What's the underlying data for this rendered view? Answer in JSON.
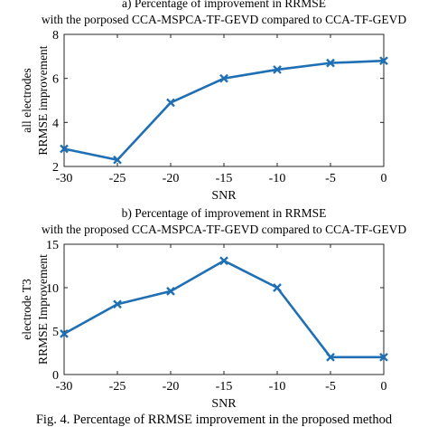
{
  "chart_data": [
    {
      "type": "line",
      "title_lines": [
        "a) Percentage of improvement in RRMSE",
        "with the porposed CCA-MSPCA-TF-GEVD compared to CCA-TF-GEVD"
      ],
      "xlabel": "SNR",
      "ylabel_lines": [
        "all electrodes",
        "RRMSE improvement"
      ],
      "x": [
        -30,
        -25,
        -20,
        -15,
        -10,
        -5,
        0
      ],
      "values": [
        2.8,
        2.3,
        4.9,
        6.0,
        6.4,
        6.7,
        6.8
      ],
      "xlim": [
        -30,
        0
      ],
      "ylim": [
        2,
        8
      ],
      "xticks": [
        -30,
        -25,
        -20,
        -15,
        -10,
        -5,
        0
      ],
      "yticks": [
        2,
        4,
        6,
        8
      ],
      "grid": false,
      "color": "#1f6fb4",
      "marker": "x"
    },
    {
      "type": "line",
      "title_lines": [
        "b) Percentage of improvement in RRMSE",
        "with the proposed CCA-MSPCA-TF-GEVD compared to CCA-TF-GEVD"
      ],
      "xlabel": "SNR",
      "ylabel_lines": [
        "electrode T3",
        "RRMSE Improvement"
      ],
      "x": [
        -30,
        -25,
        -20,
        -15,
        -10,
        -5,
        0
      ],
      "values": [
        4.7,
        8.1,
        9.6,
        13.1,
        10.0,
        2.0,
        2.0
      ],
      "xlim": [
        -30,
        0
      ],
      "ylim": [
        0,
        15
      ],
      "xticks": [
        -30,
        -25,
        -20,
        -15,
        -10,
        -5,
        0
      ],
      "yticks": [
        0,
        5,
        10,
        15
      ],
      "grid": false,
      "color": "#1f6fb4",
      "marker": "x"
    }
  ],
  "caption": "Fig. 4. Percentage of RRMSE improvement in the proposed method"
}
